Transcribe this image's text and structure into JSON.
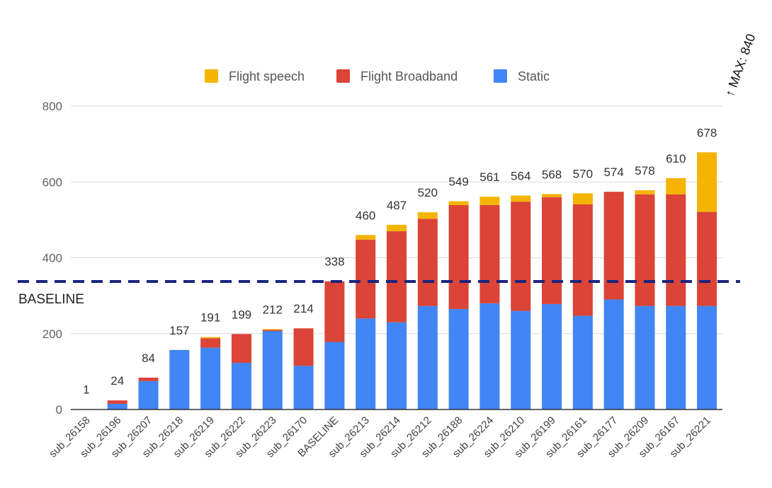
{
  "chart_data": {
    "type": "bar",
    "stacked": true,
    "categories": [
      "sub_26158",
      "sub_26196",
      "sub_26207",
      "sub_26218",
      "sub_26219",
      "sub_26222",
      "sub_26223",
      "sub_26170",
      "BASELINE",
      "sub_26213",
      "sub_26214",
      "sub_26212",
      "sub_26188",
      "sub_26224",
      "sub_26210",
      "sub_26199",
      "sub_26161",
      "sub_26177",
      "sub_26209",
      "sub_26167",
      "sub_26221"
    ],
    "series": [
      {
        "name": "Static",
        "color": "#4285F4",
        "values": [
          0,
          15,
          75,
          157,
          163,
          123,
          207,
          115,
          178,
          240,
          230,
          273,
          265,
          280,
          260,
          278,
          247,
          290,
          273,
          273,
          273
        ]
      },
      {
        "name": "Flight Broadband",
        "color": "#DB4437",
        "values": [
          0,
          9,
          9,
          0,
          25,
          76,
          3,
          99,
          160,
          208,
          240,
          230,
          274,
          259,
          288,
          282,
          294,
          284,
          294,
          294,
          248
        ]
      },
      {
        "name": "Flight speech",
        "color": "#F4B400",
        "values": [
          1,
          0,
          0,
          0,
          3,
          0,
          2,
          0,
          0,
          12,
          17,
          17,
          10,
          22,
          16,
          8,
          29,
          0,
          11,
          43,
          157
        ]
      }
    ],
    "totals": [
      "1",
      "24",
      "84",
      "157",
      "191",
      "199",
      "212",
      "214",
      "338",
      "460",
      "487",
      "520",
      "549",
      "561",
      "564",
      "568",
      "570",
      "574",
      "578",
      "610",
      "678"
    ],
    "y_ticks": [
      "0",
      "200",
      "400",
      "600",
      "800"
    ],
    "ylim": [
      0,
      800
    ],
    "grid": true,
    "legend_position": "top-center",
    "legend": [
      "Flight speech",
      "Flight Broadband",
      "Static"
    ],
    "baseline": {
      "label": "BASELINE",
      "value": 338,
      "color": "#1A237E"
    },
    "max_label": "↑ MAX: 840",
    "title": "",
    "xlabel": "",
    "ylabel": ""
  }
}
